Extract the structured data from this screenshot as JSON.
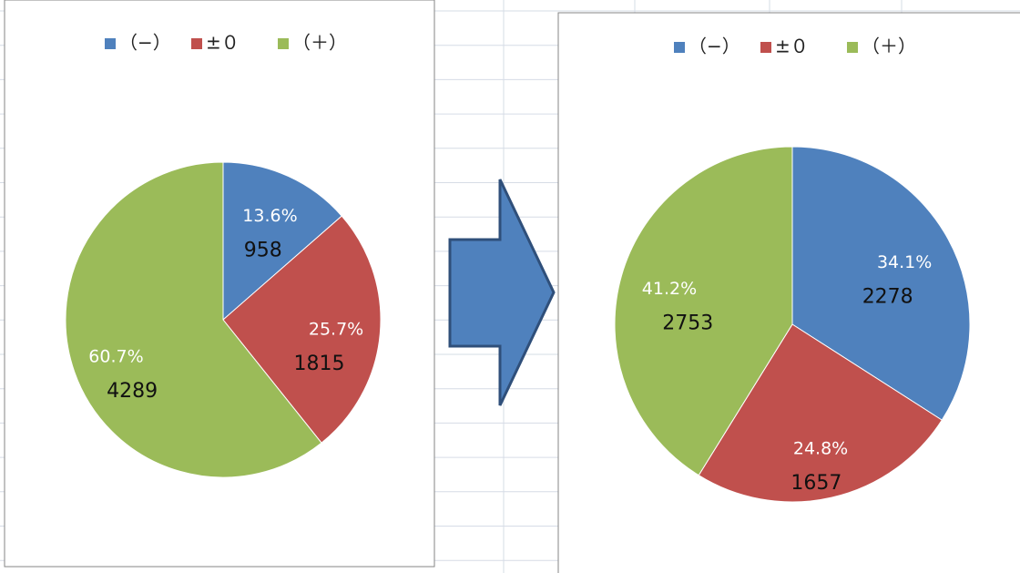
{
  "chart_data": [
    {
      "type": "pie",
      "categories": [
        "（−）",
        "±０",
        "（＋）"
      ],
      "colors": [
        "#4f81bd",
        "#c0504d",
        "#9bbb59"
      ],
      "values": [
        958,
        1815,
        4289
      ],
      "percent_labels": [
        "13.6%",
        "25.7%",
        "60.7%"
      ],
      "legend": "top"
    },
    {
      "type": "pie",
      "categories": [
        "（−）",
        "±０",
        "（＋）"
      ],
      "colors": [
        "#4f81bd",
        "#c0504d",
        "#9bbb59"
      ],
      "values": [
        2278,
        1657,
        2753
      ],
      "percent_labels": [
        "34.1%",
        "24.8%",
        "41.2%"
      ],
      "legend": "top"
    }
  ]
}
